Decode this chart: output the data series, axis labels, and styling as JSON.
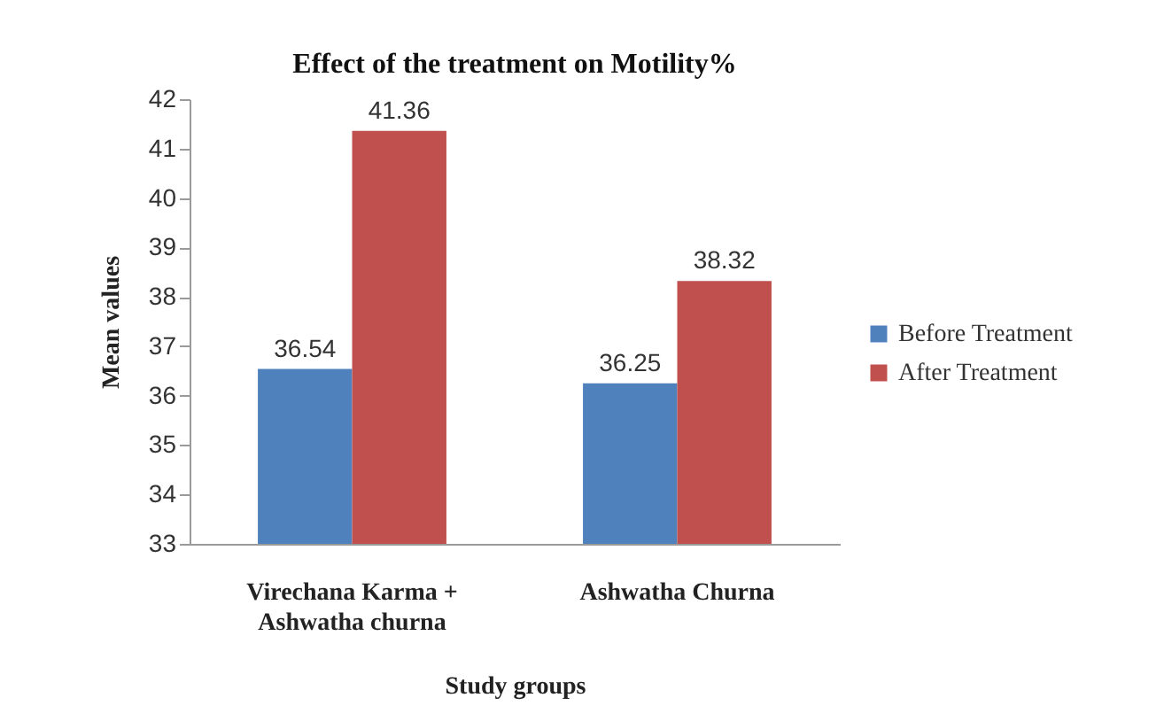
{
  "chart_data": {
    "type": "bar",
    "title": "Effect of the treatment on Motility%",
    "xlabel": "Study groups",
    "ylabel": "Mean values",
    "categories": [
      "Virechana Karma + Ashwatha churna",
      "Ashwatha Churna"
    ],
    "series": [
      {
        "name": "Before Treatment",
        "color": "#4f81bd",
        "values": [
          36.54,
          36.25
        ]
      },
      {
        "name": "After Treatment",
        "color": "#c0504d",
        "values": [
          41.36,
          38.32
        ]
      }
    ],
    "ylim": [
      33,
      42
    ],
    "yticks": [
      33,
      34,
      35,
      36,
      37,
      38,
      39,
      40,
      41,
      42
    ],
    "data_labels": true,
    "legend": "right"
  }
}
